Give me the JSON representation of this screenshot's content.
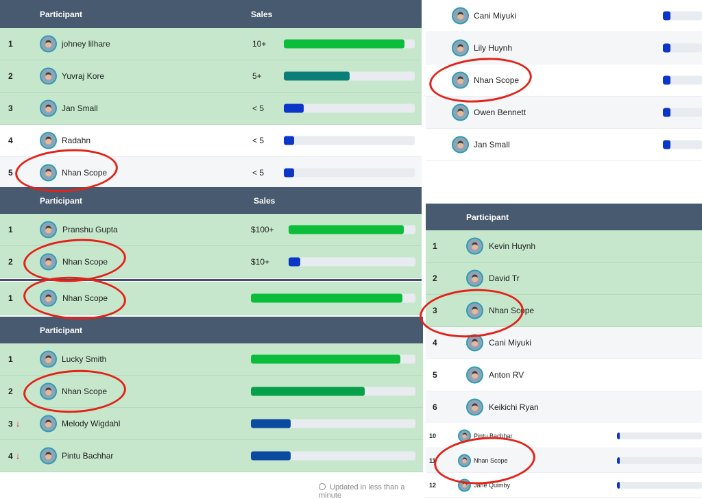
{
  "colors": {
    "header": "#475a6f",
    "green_row": "#c6e7cb",
    "bar_green": "#0cbd3b",
    "bar_teal": "#0a7f7a",
    "bar_blue": "#0b36c7",
    "bar_navy": "#0c4aa0",
    "bar_mid_green": "#06a04a",
    "annotation": "#e2231a",
    "track": "#e8ebf0"
  },
  "board_a": {
    "header": {
      "participant": "Participant",
      "sales": "Sales"
    },
    "rows": [
      {
        "rank": "1",
        "name": "johney lilhare",
        "sales": "10+",
        "progress": 0.92,
        "bar_color": "#0cbd3b",
        "avatar_icon": "user-photo-icon"
      },
      {
        "rank": "2",
        "name": "Yuvraj Kore",
        "sales": "5+",
        "progress": 0.5,
        "bar_color": "#0a7f7a",
        "avatar_icon": "user-photo-icon"
      },
      {
        "rank": "3",
        "name": "Jan Small",
        "sales": "< 5",
        "progress": 0.15,
        "bar_color": "#0b36c7",
        "avatar_icon": "user-photo-icon"
      },
      {
        "rank": "4",
        "name": "Radahn",
        "sales": "< 5",
        "progress": 0.08,
        "bar_color": "#0b36c7",
        "avatar_icon": "user-photo-icon"
      },
      {
        "rank": "5",
        "name": "Nhan Scope",
        "sales": "< 5",
        "progress": 0.08,
        "bar_color": "#0b36c7",
        "avatar_icon": "user-photo-icon"
      }
    ]
  },
  "board_b": {
    "header": {
      "participant": "Participant",
      "sales": "Sales"
    },
    "rows": [
      {
        "rank": "1",
        "name": "Pranshu Gupta",
        "sales": "$100+",
        "progress": 0.91,
        "bar_color": "#0cbd3b"
      },
      {
        "rank": "2",
        "name": "Nhan Scope",
        "sales": "$10+",
        "progress": 0.09,
        "bar_color": "#0b36c7"
      }
    ]
  },
  "board_c": {
    "rows": [
      {
        "rank": "1",
        "name": "Nhan Scope",
        "progress": 0.92,
        "bar_color": "#0cbd3b"
      }
    ]
  },
  "board_d": {
    "header": {
      "participant": "Participant"
    },
    "rows": [
      {
        "rank": "1",
        "name": "Lucky Smith",
        "progress": 0.91,
        "bar_color": "#0cbd3b",
        "trend": ""
      },
      {
        "rank": "2",
        "name": "Nhan Scope",
        "progress": 0.69,
        "bar_color": "#06a04a",
        "trend": ""
      },
      {
        "rank": "3",
        "name": "Melody Wigdahl",
        "progress": 0.24,
        "bar_color": "#0c4aa0",
        "trend": "down"
      },
      {
        "rank": "4",
        "name": "Pintu Bachhar",
        "progress": 0.24,
        "bar_color": "#0c4aa0",
        "trend": "down"
      }
    ],
    "footer": "Updated in less than a minute"
  },
  "board_e": {
    "rows": [
      {
        "name": "Cani Miyuki",
        "progress": 0.2
      },
      {
        "name": "Lily Huynh",
        "progress": 0.2
      },
      {
        "name": "Nhan Scope",
        "progress": 0.2
      },
      {
        "name": "Owen Bennett",
        "progress": 0.2
      },
      {
        "name": "Jan Small",
        "progress": 0.2
      }
    ]
  },
  "board_f": {
    "header": {
      "participant": "Participant"
    },
    "rows": [
      {
        "rank": "1",
        "name": "Kevin Huynh"
      },
      {
        "rank": "2",
        "name": "David Tr"
      },
      {
        "rank": "3",
        "name": "Nhan Scope"
      },
      {
        "rank": "4",
        "name": "Cani Miyuki"
      },
      {
        "rank": "5",
        "name": "Anton RV"
      },
      {
        "rank": "6",
        "name": "Keikichi Ryan"
      }
    ]
  },
  "board_g": {
    "rows": [
      {
        "rank": "10",
        "name": "Pintu Bachhar",
        "progress": 0.03
      },
      {
        "rank": "11",
        "name": "Nhan Scope",
        "progress": 0.03
      },
      {
        "rank": "12",
        "name": "Jane Quimby",
        "progress": 0.03
      }
    ]
  },
  "trend_down_icon": "↓"
}
